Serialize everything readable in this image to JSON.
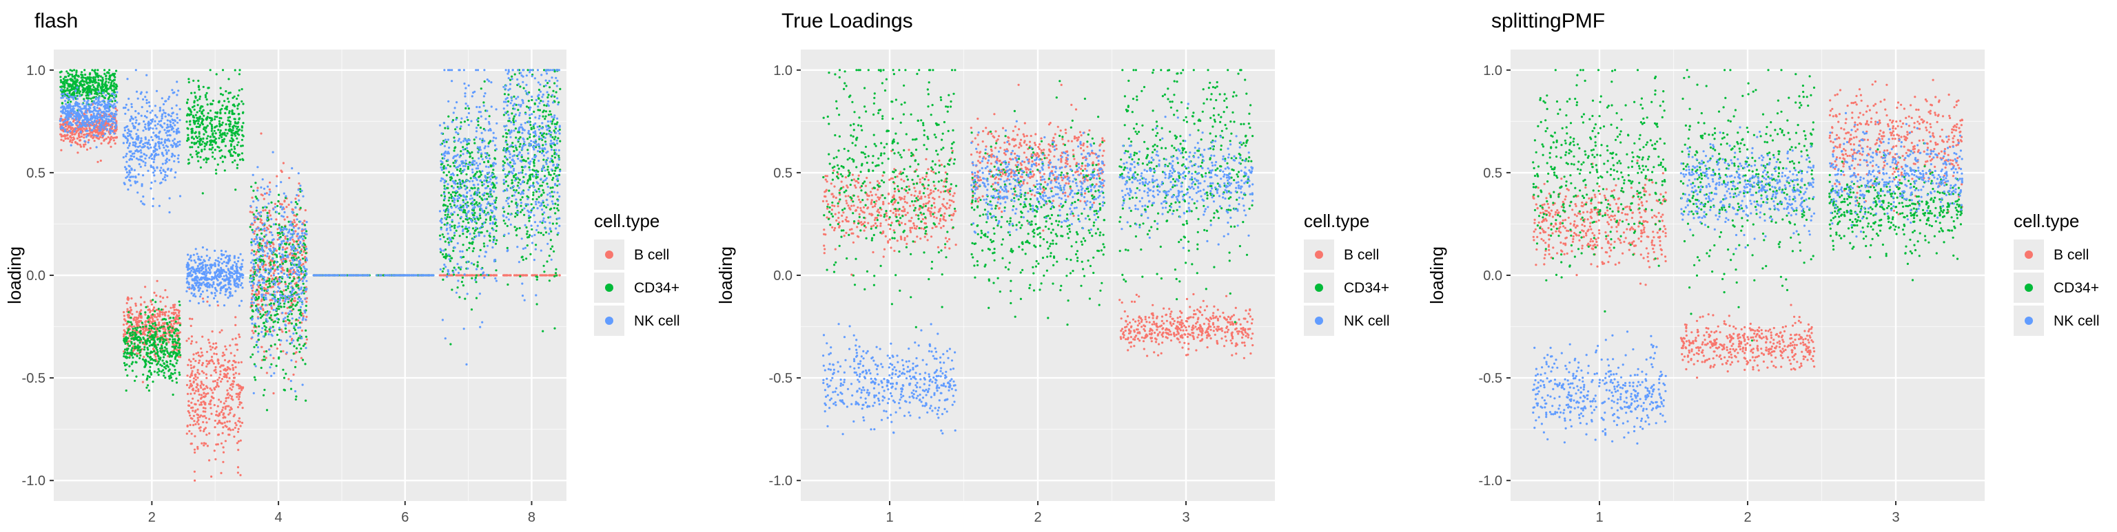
{
  "colors": {
    "panel_bg": "#EBEBEB",
    "grid_major": "#FFFFFF",
    "b_cell": "#F8766D",
    "cd34": "#00BA38",
    "nk_cell": "#619CFF"
  },
  "chart_data": [
    {
      "type": "scatter",
      "title": "flash",
      "xlabel": "",
      "ylabel": "loading",
      "xlim": [
        0.45,
        8.55
      ],
      "ylim": [
        -1.1,
        1.1
      ],
      "x_ticks": [
        2,
        4,
        6,
        8
      ],
      "x_tick_labels": [
        "2",
        "4",
        "6",
        "8"
      ],
      "y_ticks": [
        -1.0,
        -0.5,
        0.0,
        0.5,
        1.0
      ],
      "y_tick_labels": [
        "-1.0",
        "-0.5",
        "0.0",
        "0.5",
        "1.0"
      ],
      "grid": true,
      "legend": {
        "title": "cell.type",
        "entries": [
          "B cell",
          "CD34+",
          "NK cell"
        ],
        "position": "right"
      },
      "series": [
        {
          "name": "B cell",
          "color": "#F8766D",
          "points": [
            {
              "x": 1,
              "y_center": 0.72,
              "y_spread": 0.04
            },
            {
              "x": 2,
              "y_center": -0.25,
              "y_spread": 0.07
            },
            {
              "x": 3,
              "y_center": -0.58,
              "y_spread": 0.15
            },
            {
              "x": 4,
              "y_center": 0.05,
              "y_spread": 0.2
            },
            {
              "x": 5,
              "y_center": 0.0,
              "y_spread": 0.0
            },
            {
              "x": 6,
              "y_center": 0.0,
              "y_spread": 0.0
            },
            {
              "x": 7,
              "y_center": 0.0,
              "y_spread": 0.0
            },
            {
              "x": 8,
              "y_center": 0.0,
              "y_spread": 0.0
            }
          ]
        },
        {
          "name": "CD34+",
          "color": "#00BA38",
          "points": [
            {
              "x": 1,
              "y_center": 0.92,
              "y_spread": 0.04
            },
            {
              "x": 2,
              "y_center": -0.35,
              "y_spread": 0.08
            },
            {
              "x": 3,
              "y_center": 0.72,
              "y_spread": 0.1
            },
            {
              "x": 4,
              "y_center": -0.05,
              "y_spread": 0.22
            },
            {
              "x": 5,
              "y_center": 0.0,
              "y_spread": 0.0
            },
            {
              "x": 6,
              "y_center": 0.0,
              "y_spread": 0.0
            },
            {
              "x": 7,
              "y_center": 0.35,
              "y_spread": 0.2
            },
            {
              "x": 8,
              "y_center": 0.55,
              "y_spread": 0.25
            }
          ]
        },
        {
          "name": "NK cell",
          "color": "#619CFF",
          "points": [
            {
              "x": 1,
              "y_center": 0.78,
              "y_spread": 0.05
            },
            {
              "x": 2,
              "y_center": 0.65,
              "y_spread": 0.12
            },
            {
              "x": 3,
              "y_center": 0.0,
              "y_spread": 0.05
            },
            {
              "x": 4,
              "y_center": 0.05,
              "y_spread": 0.2
            },
            {
              "x": 5,
              "y_center": 0.0,
              "y_spread": 0.0
            },
            {
              "x": 6,
              "y_center": 0.0,
              "y_spread": 0.0
            },
            {
              "x": 7,
              "y_center": 0.45,
              "y_spread": 0.25
            },
            {
              "x": 8,
              "y_center": 0.6,
              "y_spread": 0.25
            }
          ]
        }
      ]
    },
    {
      "type": "scatter",
      "title": "True Loadings",
      "xlabel": "",
      "ylabel": "loading",
      "xlim": [
        0.4,
        3.6
      ],
      "ylim": [
        -1.1,
        1.1
      ],
      "x_ticks": [
        1,
        2,
        3
      ],
      "x_tick_labels": [
        "1",
        "2",
        "3"
      ],
      "y_ticks": [
        -1.0,
        -0.5,
        0.0,
        0.5,
        1.0
      ],
      "y_tick_labels": [
        "-1.0",
        "-0.5",
        "0.0",
        "0.5",
        "1.0"
      ],
      "grid": true,
      "legend": {
        "title": "cell.type",
        "entries": [
          "B cell",
          "CD34+",
          "NK cell"
        ],
        "position": "right"
      },
      "series": [
        {
          "name": "B cell",
          "color": "#F8766D",
          "points": [
            {
              "x": 1,
              "y_center": 0.33,
              "y_spread": 0.1
            },
            {
              "x": 2,
              "y_center": 0.55,
              "y_spread": 0.1
            },
            {
              "x": 3,
              "y_center": -0.26,
              "y_spread": 0.05
            }
          ]
        },
        {
          "name": "CD34+",
          "color": "#00BA38",
          "points": [
            {
              "x": 1,
              "y_center": 0.5,
              "y_spread": 0.25
            },
            {
              "x": 2,
              "y_center": 0.3,
              "y_spread": 0.2
            },
            {
              "x": 3,
              "y_center": 0.55,
              "y_spread": 0.25
            }
          ]
        },
        {
          "name": "NK cell",
          "color": "#619CFF",
          "points": [
            {
              "x": 1,
              "y_center": -0.52,
              "y_spread": 0.1
            },
            {
              "x": 2,
              "y_center": 0.45,
              "y_spread": 0.1
            },
            {
              "x": 3,
              "y_center": 0.45,
              "y_spread": 0.1
            }
          ]
        }
      ]
    },
    {
      "type": "scatter",
      "title": "splittingPMF",
      "xlabel": "",
      "ylabel": "loading",
      "xlim": [
        0.4,
        3.6
      ],
      "ylim": [
        -1.1,
        1.1
      ],
      "x_ticks": [
        1,
        2,
        3
      ],
      "x_tick_labels": [
        "1",
        "2",
        "3"
      ],
      "y_ticks": [
        -1.0,
        -0.5,
        0.0,
        0.5,
        1.0
      ],
      "y_tick_labels": [
        "-1.0",
        "-0.5",
        "0.0",
        "0.5",
        "1.0"
      ],
      "grid": true,
      "legend": {
        "title": "cell.type",
        "entries": [
          "B cell",
          "CD34+",
          "NK cell"
        ],
        "position": "right"
      },
      "series": [
        {
          "name": "B cell",
          "color": "#F8766D",
          "points": [
            {
              "x": 1,
              "y_center": 0.25,
              "y_spread": 0.1
            },
            {
              "x": 2,
              "y_center": -0.34,
              "y_spread": 0.06
            },
            {
              "x": 3,
              "y_center": 0.65,
              "y_spread": 0.12
            }
          ]
        },
        {
          "name": "CD34+",
          "color": "#00BA38",
          "points": [
            {
              "x": 1,
              "y_center": 0.5,
              "y_spread": 0.22
            },
            {
              "x": 2,
              "y_center": 0.5,
              "y_spread": 0.22
            },
            {
              "x": 3,
              "y_center": 0.32,
              "y_spread": 0.1
            }
          ]
        },
        {
          "name": "NK cell",
          "color": "#619CFF",
          "points": [
            {
              "x": 1,
              "y_center": -0.58,
              "y_spread": 0.1
            },
            {
              "x": 2,
              "y_center": 0.42,
              "y_spread": 0.1
            },
            {
              "x": 3,
              "y_center": 0.48,
              "y_spread": 0.1
            }
          ]
        }
      ]
    }
  ]
}
